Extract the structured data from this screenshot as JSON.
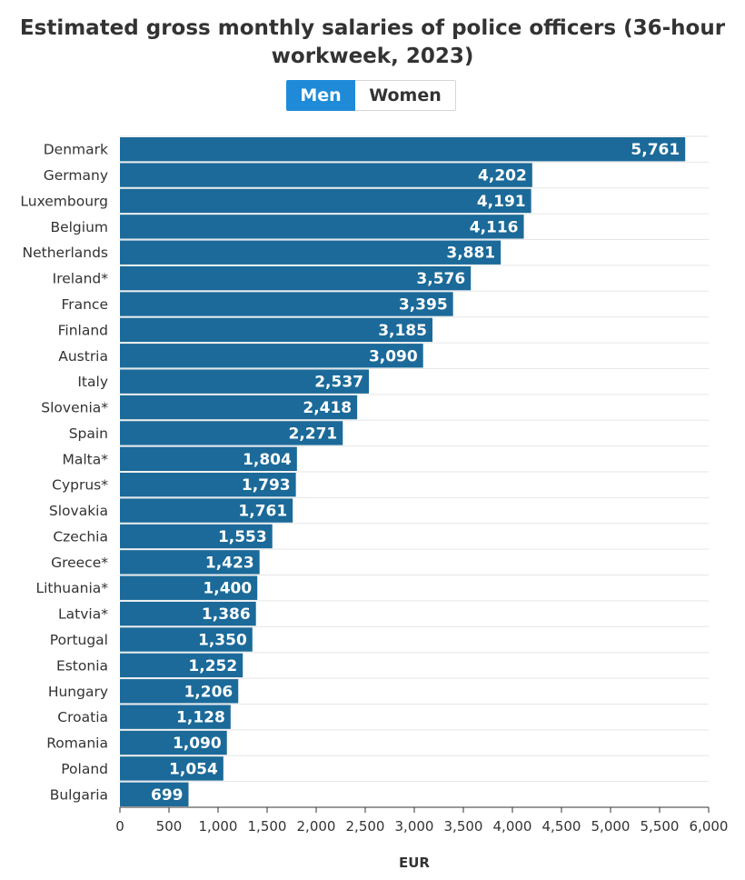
{
  "title": "Estimated gross monthly salaries of police officers (36-hour workweek, 2023)",
  "title_lines": [
    "Estimated gross monthly salaries of police officers (36-hour",
    "workweek, 2023)"
  ],
  "tabs": [
    {
      "label": "Men",
      "active": true
    },
    {
      "label": "Women",
      "active": false
    }
  ],
  "colors": {
    "bar": "#1b6a99",
    "accent": "#1f8bd8",
    "grid": "#e6e6e6"
  },
  "chart_data": {
    "type": "bar",
    "orientation": "horizontal",
    "title": "Estimated gross monthly salaries of police officers (36-hour workweek, 2023)",
    "series_name": "Men",
    "categories": [
      "Denmark",
      "Germany",
      "Luxembourg",
      "Belgium",
      "Netherlands",
      "Ireland*",
      "France",
      "Finland",
      "Austria",
      "Italy",
      "Slovenia*",
      "Spain",
      "Malta*",
      "Cyprus*",
      "Slovakia",
      "Czechia",
      "Greece*",
      "Lithuania*",
      "Latvia*",
      "Portugal",
      "Estonia",
      "Hungary",
      "Croatia",
      "Romania",
      "Poland",
      "Bulgaria"
    ],
    "values": [
      5761,
      4202,
      4191,
      4116,
      3881,
      3576,
      3395,
      3185,
      3090,
      2537,
      2418,
      2271,
      1804,
      1793,
      1761,
      1553,
      1423,
      1400,
      1386,
      1350,
      1252,
      1206,
      1128,
      1090,
      1054,
      699
    ],
    "value_labels": [
      "5,761",
      "4,202",
      "4,191",
      "4,116",
      "3,881",
      "3,576",
      "3,395",
      "3,185",
      "3,090",
      "2,537",
      "2,418",
      "2,271",
      "1,804",
      "1,793",
      "1,761",
      "1,553",
      "1,423",
      "1,400",
      "1,386",
      "1,350",
      "1,252",
      "1,206",
      "1,128",
      "1,090",
      "1,054",
      "699"
    ],
    "xlabel": "EUR",
    "ylabel": "",
    "xlim": [
      0,
      6000
    ],
    "xticks": [
      0,
      500,
      1000,
      1500,
      2000,
      2500,
      3000,
      3500,
      4000,
      4500,
      5000,
      5500,
      6000
    ],
    "xtick_labels": [
      "0",
      "500",
      "1,000",
      "1,500",
      "2,000",
      "2,500",
      "3,000",
      "3,500",
      "4,000",
      "4,500",
      "5,000",
      "5,500",
      "6,000"
    ],
    "grid": true
  }
}
